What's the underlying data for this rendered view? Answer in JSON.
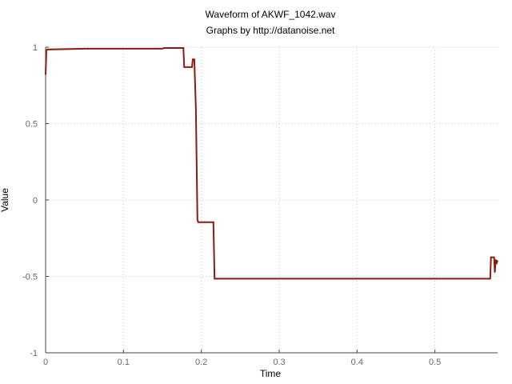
{
  "chart_data": {
    "type": "line",
    "title": "Waveform of AKWF_1042.wav",
    "subtitle": "Graphs by http://datanoise.net",
    "xlabel": "Time",
    "ylabel": "Value",
    "xlim": [
      0,
      0.5805
    ],
    "ylim": [
      -1,
      1
    ],
    "xticks": [
      0,
      0.1,
      0.2,
      0.3,
      0.4,
      0.5
    ],
    "xtick_labels": [
      "0",
      "0.1",
      "0.2",
      "0.3",
      "0.4",
      "0.5"
    ],
    "yticks": [
      1,
      0.5,
      0,
      -0.5,
      -1
    ],
    "ytick_labels": [
      "1",
      "0.5",
      "0",
      "-0.5",
      "-1"
    ],
    "grid": true,
    "line_color": "#8b1a10",
    "series": [
      {
        "x": [
          0,
          0.001,
          0.002,
          0.05,
          0.15,
          0.152,
          0.177,
          0.178,
          0.188,
          0.189,
          0.191,
          0.193,
          0.195,
          0.196,
          0.2155,
          0.217,
          0.571,
          0.572,
          0.576,
          0.577,
          0.578,
          0.5795,
          0.5805
        ],
        "y": [
          0.82,
          0.98,
          0.985,
          0.99,
          0.99,
          0.995,
          0.995,
          0.87,
          0.87,
          0.92,
          0.92,
          0.6,
          -0.13,
          -0.145,
          -0.145,
          -0.515,
          -0.515,
          -0.375,
          -0.375,
          -0.475,
          -0.39,
          -0.41,
          -0.395
        ]
      }
    ]
  }
}
